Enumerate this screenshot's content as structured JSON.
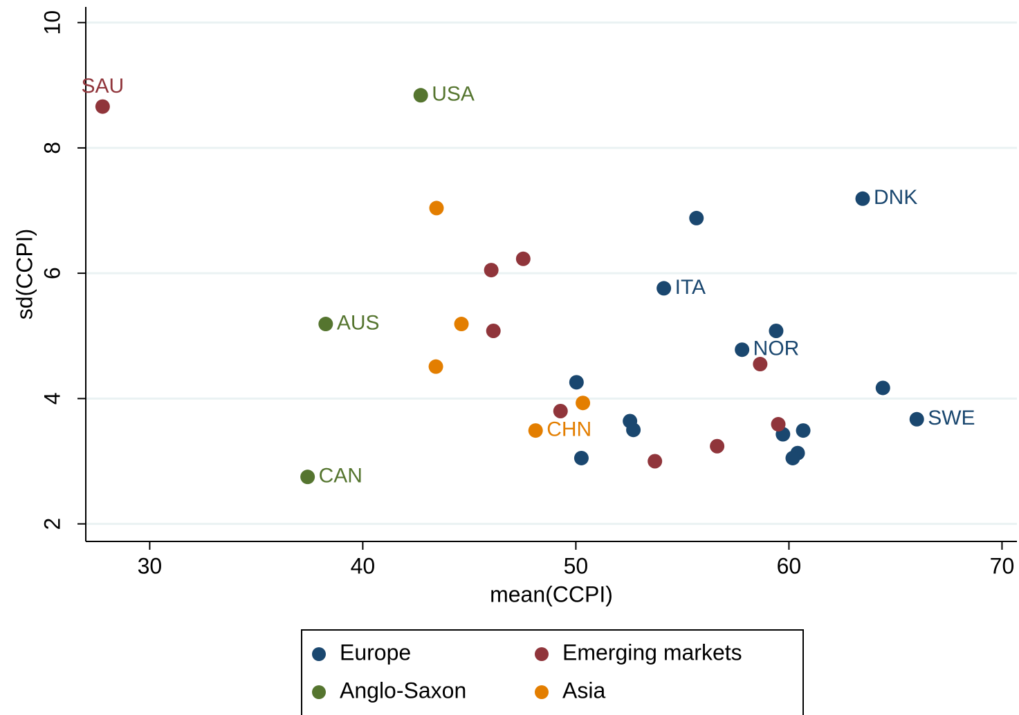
{
  "chart_data": {
    "type": "scatter",
    "x_label": "mean(CCPI)",
    "y_label": "sd(CCPI)",
    "xlim": [
      27,
      70.7
    ],
    "ylim": [
      1.72,
      10.25
    ],
    "xticks": [
      30,
      40,
      50,
      60,
      70
    ],
    "yticks": [
      2,
      4,
      6,
      8,
      10
    ],
    "grid": true,
    "legend": "bottom",
    "series": [
      {
        "name": "Europe",
        "color": "#1a476f",
        "x": [
          63.46,
          55.66,
          54.13,
          59.4,
          57.8,
          64.41,
          66.0,
          50.03,
          52.54,
          52.7,
          50.26,
          59.72,
          60.67,
          60.41,
          60.18
        ],
        "values": [
          7.19,
          6.88,
          5.76,
          5.08,
          4.78,
          4.17,
          3.67,
          4.26,
          3.64,
          3.5,
          3.05,
          3.43,
          3.49,
          3.13,
          3.05
        ],
        "labels": [
          "DNK",
          null,
          "ITA",
          null,
          "NOR",
          null,
          "SWE",
          null,
          null,
          null,
          null,
          null,
          null,
          null,
          null
        ]
      },
      {
        "name": "Emerging markets",
        "color": "#90353b",
        "x": [
          27.79,
          46.03,
          47.53,
          46.13,
          58.65,
          49.28,
          59.5,
          53.71,
          56.63
        ],
        "values": [
          8.66,
          6.05,
          6.23,
          5.08,
          4.55,
          3.8,
          3.59,
          3.0,
          3.24
        ],
        "labels": [
          "SAU",
          null,
          null,
          null,
          null,
          null,
          null,
          null,
          null
        ]
      },
      {
        "name": "Anglo-Saxon",
        "color": "#55752f",
        "x": [
          42.72,
          38.26,
          37.41
        ],
        "values": [
          8.84,
          5.19,
          2.75
        ],
        "labels": [
          "USA",
          "AUS",
          "CAN"
        ]
      },
      {
        "name": "Asia",
        "color": "#e37e00",
        "x": [
          43.46,
          44.63,
          43.43,
          50.33,
          48.11
        ],
        "values": [
          7.04,
          5.19,
          4.51,
          3.93,
          3.49
        ],
        "labels": [
          null,
          null,
          null,
          null,
          "CHN"
        ]
      }
    ]
  }
}
